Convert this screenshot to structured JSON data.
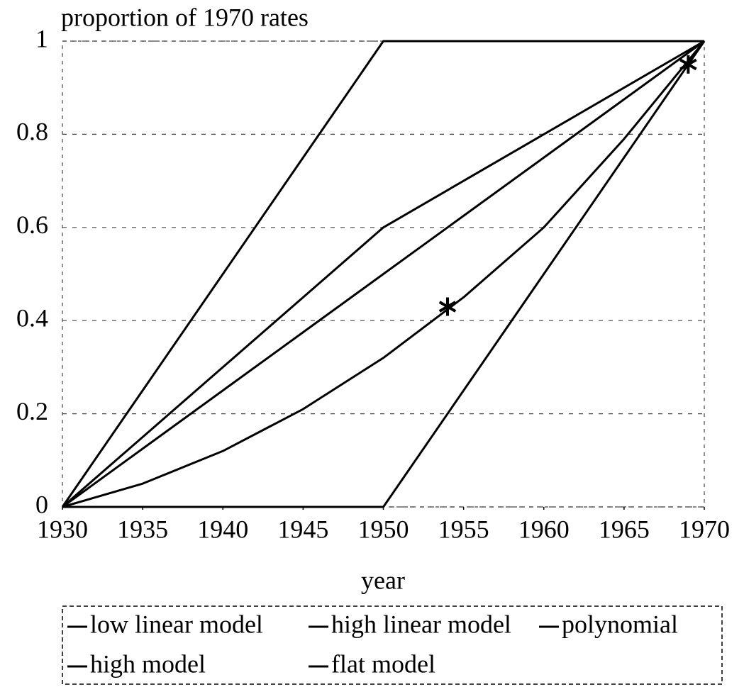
{
  "chart_data": {
    "type": "line",
    "y_label": "proportion of 1970 rates",
    "x_label": "year",
    "x": [
      1930,
      1935,
      1940,
      1945,
      1950,
      1955,
      1960,
      1965,
      1970
    ],
    "series": [
      {
        "name": "low linear model",
        "color": "#000000",
        "values": [
          0,
          0.125,
          0.25,
          0.375,
          0.5,
          0.625,
          0.75,
          0.875,
          1
        ]
      },
      {
        "name": "high linear model",
        "color": "#000000",
        "values": [
          0,
          0.15,
          0.3,
          0.45,
          0.6,
          0.7,
          0.8,
          0.9,
          1
        ]
      },
      {
        "name": "polynomial",
        "color": "#000000",
        "values": [
          0,
          0.05,
          0.12,
          0.21,
          0.32,
          0.45,
          0.6,
          0.79,
          1
        ]
      },
      {
        "name": "high model",
        "color": "#000000",
        "values": [
          0,
          0.25,
          0.5,
          0.75,
          1,
          1,
          1,
          1,
          1
        ]
      },
      {
        "name": "flat model",
        "color": "#000000",
        "values": [
          0,
          0,
          0,
          0,
          0,
          0.25,
          0.5,
          0.75,
          1
        ]
      }
    ],
    "markers": {
      "x": [
        1954,
        1969
      ],
      "values": [
        0.43,
        0.95
      ]
    },
    "xlim": [
      1930,
      1970
    ],
    "xticks": [
      1930,
      1935,
      1940,
      1945,
      1950,
      1955,
      1960,
      1965,
      1970
    ],
    "ylim": [
      0,
      1
    ],
    "yticks": [
      0,
      0.2,
      0.4,
      0.6,
      0.8,
      1
    ],
    "grid": true
  }
}
